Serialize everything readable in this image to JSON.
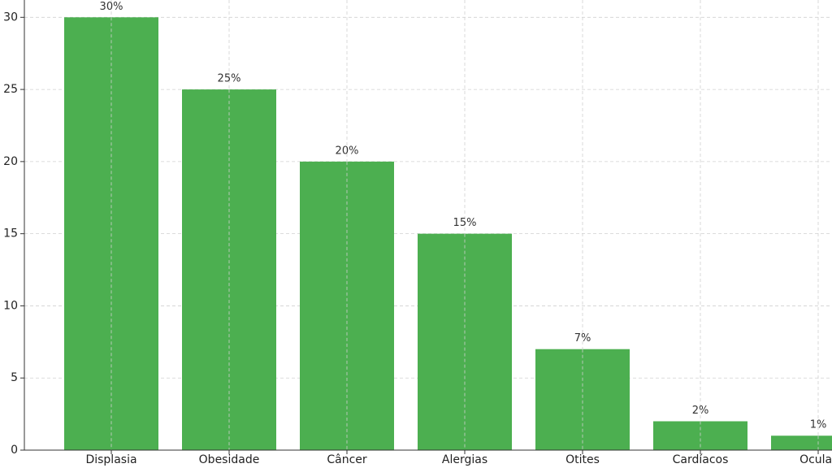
{
  "chart_data": {
    "type": "bar",
    "categories": [
      "Displasia",
      "Obesidade",
      "Câncer",
      "Alergias",
      "Otites",
      "Cardíacos",
      "Ocular"
    ],
    "values": [
      30,
      25,
      20,
      15,
      7,
      2,
      1
    ],
    "value_labels": [
      "30%",
      "25%",
      "20%",
      "15%",
      "7%",
      "2%",
      "1%"
    ],
    "color": "#4caf50",
    "ylim": [
      0,
      31.2
    ],
    "yticks": [
      0,
      5,
      10,
      15,
      20,
      25,
      30
    ],
    "grid": true
  }
}
